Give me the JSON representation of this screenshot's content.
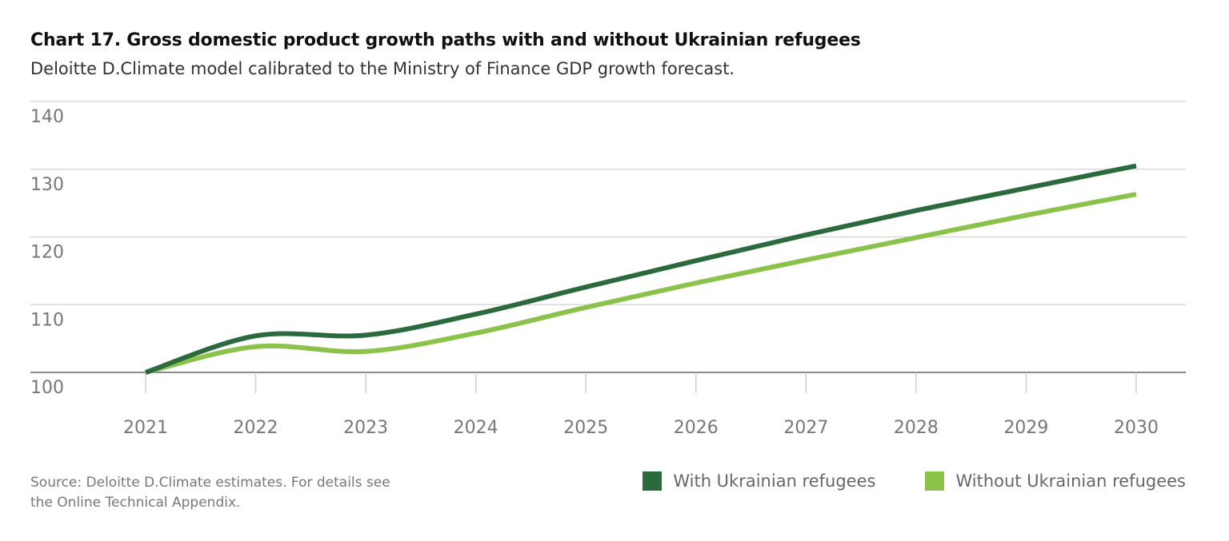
{
  "title": "Chart 17. Gross domestic product growth paths with and without Ukrainian refugees",
  "subtitle": "Deloitte D.Climate model calibrated to the Ministry of Finance GDP growth forecast.",
  "source_line1": "Source: Deloitte D.Climate estimates. For details see",
  "source_line2": "the Online Technical Appendix.",
  "legend": [
    {
      "label": "With Ukrainian refugees",
      "color": "#2a6a3c"
    },
    {
      "label": "Without Ukrainian refugees",
      "color": "#8bc34a"
    }
  ],
  "chart_data": {
    "type": "line",
    "x": [
      "2021",
      "2022",
      "2023",
      "2024",
      "2025",
      "2026",
      "2027",
      "2028",
      "2029",
      "2030"
    ],
    "series": [
      {
        "name": "With Ukrainian refugees",
        "color": "#2a6a3c",
        "values": [
          100,
          105.4,
          105.5,
          108.6,
          112.6,
          116.5,
          120.3,
          123.9,
          127.2,
          130.5
        ]
      },
      {
        "name": "Without Ukrainian refugees",
        "color": "#8bc34a",
        "values": [
          100,
          103.8,
          103.1,
          105.8,
          109.6,
          113.2,
          116.6,
          119.9,
          123.2,
          126.3
        ]
      }
    ],
    "y_ticks": [
      "100",
      "110",
      "120",
      "130",
      "140"
    ],
    "ylim": [
      100,
      140
    ],
    "xlabel": "",
    "ylabel": "",
    "grid": true,
    "legend_position": "bottom-right"
  }
}
